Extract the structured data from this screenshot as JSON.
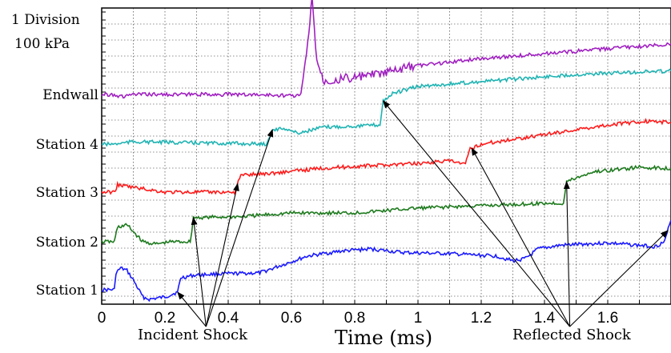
{
  "chart_data": {
    "type": "line",
    "xlabel": "Time (ms)",
    "xlim": [
      0,
      1.8
    ],
    "x_ticks": [
      "0",
      "0.2",
      "0.4",
      "0.6",
      "0.8",
      "1",
      "1.2",
      "1.4",
      "1.6"
    ],
    "scale_label": [
      "1 Division",
      "100 kPa"
    ],
    "grid": true,
    "series": [
      {
        "name": "Station 1",
        "color": "#1a1aff",
        "points": [
          [
            0,
            0.0
          ],
          [
            0.04,
            0.0
          ],
          [
            0.045,
            0.7
          ],
          [
            0.06,
            0.9
          ],
          [
            0.08,
            0.8
          ],
          [
            0.1,
            0.4
          ],
          [
            0.13,
            -0.3
          ],
          [
            0.15,
            -0.4
          ],
          [
            0.2,
            -0.3
          ],
          [
            0.24,
            -0.1
          ],
          [
            0.25,
            0.5
          ],
          [
            0.29,
            0.6
          ],
          [
            0.35,
            0.65
          ],
          [
            0.5,
            0.7
          ],
          [
            0.65,
            1.4
          ],
          [
            0.75,
            1.6
          ],
          [
            0.85,
            1.7
          ],
          [
            0.95,
            1.55
          ],
          [
            1.1,
            1.5
          ],
          [
            1.25,
            1.4
          ],
          [
            1.3,
            1.2
          ],
          [
            1.34,
            1.3
          ],
          [
            1.38,
            1.7
          ],
          [
            1.45,
            1.85
          ],
          [
            1.6,
            1.95
          ],
          [
            1.75,
            1.8
          ],
          [
            1.78,
            2.0
          ],
          [
            1.795,
            2.7
          ],
          [
            1.8,
            2.9
          ]
        ]
      },
      {
        "name": "Station 2",
        "color": "#1e7a1e",
        "points": [
          [
            0,
            0.0
          ],
          [
            0.04,
            0.0
          ],
          [
            0.05,
            0.6
          ],
          [
            0.08,
            0.7
          ],
          [
            0.13,
            0.0
          ],
          [
            0.17,
            -0.1
          ],
          [
            0.22,
            0.0
          ],
          [
            0.28,
            0.0
          ],
          [
            0.29,
            1.0
          ],
          [
            0.45,
            1.05
          ],
          [
            0.6,
            1.2
          ],
          [
            0.8,
            1.2
          ],
          [
            1.0,
            1.4
          ],
          [
            1.2,
            1.5
          ],
          [
            1.4,
            1.6
          ],
          [
            1.46,
            1.6
          ],
          [
            1.47,
            2.5
          ],
          [
            1.55,
            2.9
          ],
          [
            1.7,
            3.1
          ],
          [
            1.8,
            3.05
          ]
        ]
      },
      {
        "name": "Station 3",
        "color": "#ff1a1a",
        "points": [
          [
            0,
            0.0
          ],
          [
            0.04,
            0.0
          ],
          [
            0.05,
            0.3
          ],
          [
            0.1,
            0.2
          ],
          [
            0.2,
            0.0
          ],
          [
            0.3,
            0.0
          ],
          [
            0.42,
            0.0
          ],
          [
            0.44,
            0.7
          ],
          [
            0.55,
            0.8
          ],
          [
            0.7,
            1.0
          ],
          [
            0.85,
            1.1
          ],
          [
            1.0,
            1.2
          ],
          [
            1.1,
            1.3
          ],
          [
            1.15,
            1.15
          ],
          [
            1.165,
            1.8
          ],
          [
            1.2,
            2.0
          ],
          [
            1.4,
            2.4
          ],
          [
            1.6,
            2.8
          ],
          [
            1.72,
            2.95
          ],
          [
            1.8,
            2.9
          ]
        ]
      },
      {
        "name": "Station 4",
        "color": "#20b3b3",
        "points": [
          [
            0,
            0.0
          ],
          [
            0.04,
            0.0
          ],
          [
            0.1,
            0.1
          ],
          [
            0.3,
            0.05
          ],
          [
            0.52,
            0.0
          ],
          [
            0.54,
            0.6
          ],
          [
            0.58,
            0.65
          ],
          [
            0.62,
            0.45
          ],
          [
            0.7,
            0.7
          ],
          [
            0.8,
            0.75
          ],
          [
            0.88,
            0.8
          ],
          [
            0.89,
            1.8
          ],
          [
            0.92,
            2.1
          ],
          [
            1.0,
            2.4
          ],
          [
            1.2,
            2.6
          ],
          [
            1.4,
            2.8
          ],
          [
            1.5,
            2.9
          ],
          [
            1.6,
            2.95
          ],
          [
            1.8,
            3.05
          ]
        ]
      },
      {
        "name": "Endwall",
        "color": "#a020c0",
        "points": [
          [
            0,
            0.0
          ],
          [
            0.04,
            0.0
          ],
          [
            0.06,
            -0.1
          ],
          [
            0.1,
            0.0
          ],
          [
            0.15,
            0.0
          ],
          [
            0.3,
            0.0
          ],
          [
            0.45,
            0.0
          ],
          [
            0.62,
            -0.05
          ],
          [
            0.63,
            0.0
          ],
          [
            0.64,
            1.0
          ],
          [
            0.655,
            2.5
          ],
          [
            0.665,
            4.0
          ],
          [
            0.68,
            1.5
          ],
          [
            0.7,
            0.6
          ],
          [
            0.8,
            0.7
          ],
          [
            0.9,
            0.9
          ],
          [
            1.0,
            1.2
          ],
          [
            1.2,
            1.5
          ],
          [
            1.4,
            1.7
          ],
          [
            1.6,
            1.9
          ],
          [
            1.8,
            2.1
          ]
        ]
      }
    ],
    "annotations": [
      {
        "text": "Incident Shock",
        "anchor_time_ms": 0.33,
        "targets_ms": [
          0.24,
          0.29,
          0.43,
          0.54
        ]
      },
      {
        "text": "Reflected Shock",
        "anchor_time_ms": 1.48,
        "targets_ms": [
          0.89,
          1.17,
          1.47,
          1.79
        ]
      }
    ]
  }
}
